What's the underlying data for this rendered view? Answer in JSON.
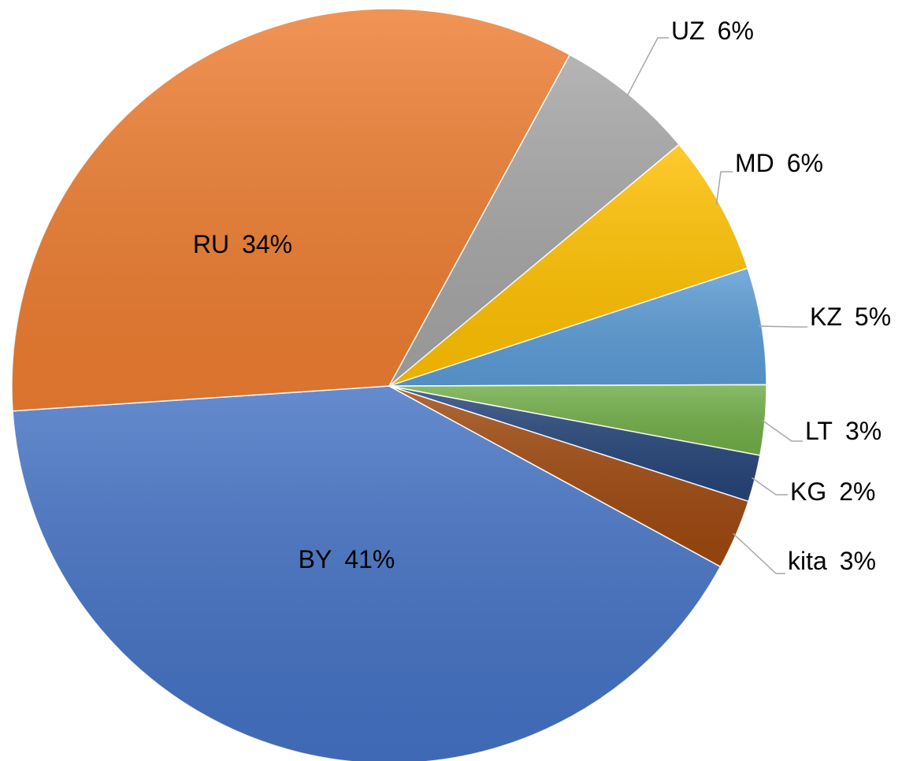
{
  "chart_data": {
    "type": "pie",
    "categories": [
      "BY",
      "RU",
      "UZ",
      "MD",
      "KZ",
      "LT",
      "KG",
      "kita"
    ],
    "values": [
      41,
      34,
      6,
      6,
      5,
      3,
      2,
      3
    ],
    "value_labels": [
      "41%",
      "34%",
      "6%",
      "6%",
      "5%",
      "3%",
      "2%",
      "3%"
    ],
    "colors": [
      "#4472c4",
      "#ed7d31",
      "#a5a5a5",
      "#ffc000",
      "#5b9bd5",
      "#70ad47",
      "#264478",
      "#9e480e"
    ]
  }
}
